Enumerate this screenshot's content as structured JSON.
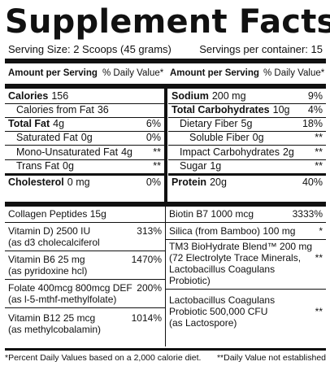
{
  "title": "Supplement Facts",
  "serving": {
    "size": "Serving Size:  2 Scoops (45 grams)",
    "per_container": "Servings per container:  15"
  },
  "header": {
    "amount": "Amount per Serving",
    "dv": "% Daily Value*"
  },
  "left_rows": [
    {
      "name": "Calories",
      "amount": "156",
      "dv": ""
    },
    {
      "name": "Calories from Fat",
      "amount": "36",
      "dv": ""
    },
    {
      "name": "Total Fat",
      "amount": "4g",
      "dv": "6%"
    },
    {
      "name": "Saturated Fat",
      "amount": "0g",
      "dv": "0%"
    },
    {
      "name": "Mono-Unsaturated Fat",
      "amount": "4g",
      "dv": "**"
    },
    {
      "name": "Trans Fat",
      "amount": "0g",
      "dv": "**"
    },
    {
      "name": "Cholesterol",
      "amount": "0 mg",
      "dv": "0%"
    }
  ],
  "right_rows": [
    {
      "name": "Sodium",
      "amount": "200 mg",
      "dv": "9%"
    },
    {
      "name": "Total Carbohydrates",
      "amount": "10g",
      "dv": "4%"
    },
    {
      "name": "Dietary Fiber",
      "amount": "5g",
      "dv": "18%"
    },
    {
      "name": "Soluble Fiber",
      "amount": "0g",
      "dv": "**"
    },
    {
      "name": "Impact Carbohydrates",
      "amount": "2g",
      "dv": "**"
    },
    {
      "name": "Sugar",
      "amount": "1g",
      "dv": "**"
    },
    {
      "name": "Protein",
      "amount": "20g",
      "dv": "40%"
    }
  ],
  "lower_left": [
    {
      "text": "Collagen Peptides  15g",
      "dv": ""
    },
    {
      "text": "Vitamin D)  2500 IU\n(as d3 cholecalciferol",
      "dv": "313%"
    },
    {
      "text": "Vitamin B6  25  mg\n(as pyridoxine hcl)",
      "dv": "1470%"
    },
    {
      "text": "Folate  400mcg  800mcg DEF\n(as l-5-mthf-methylfolate)",
      "dv": "200%"
    },
    {
      "text": "Vitamin B12  25 mcg\n(as methylcobalamin)",
      "dv": "1014%"
    }
  ],
  "lower_right": [
    {
      "text": "Biotin B7  1000 mcg",
      "dv": "3333%"
    },
    {
      "text": "Silica (from Bamboo)  100 mg",
      "dv": "*"
    },
    {
      "text": "TM3 BioHydrate Blend™  200 mg\n(72 Electrolyte Trace Minerals,\nLactobacillus Coagulans\nProbiotic)",
      "dv": "**"
    },
    {
      "text": "Lactobacillus Coagulans\nProbiotic  500,000 CFU\n(as Lactospore)",
      "dv": "**"
    }
  ],
  "footer": {
    "left": "*Percent Daily Values based on a 2,000 calorie diet.",
    "right": "**Daily Value not established"
  }
}
